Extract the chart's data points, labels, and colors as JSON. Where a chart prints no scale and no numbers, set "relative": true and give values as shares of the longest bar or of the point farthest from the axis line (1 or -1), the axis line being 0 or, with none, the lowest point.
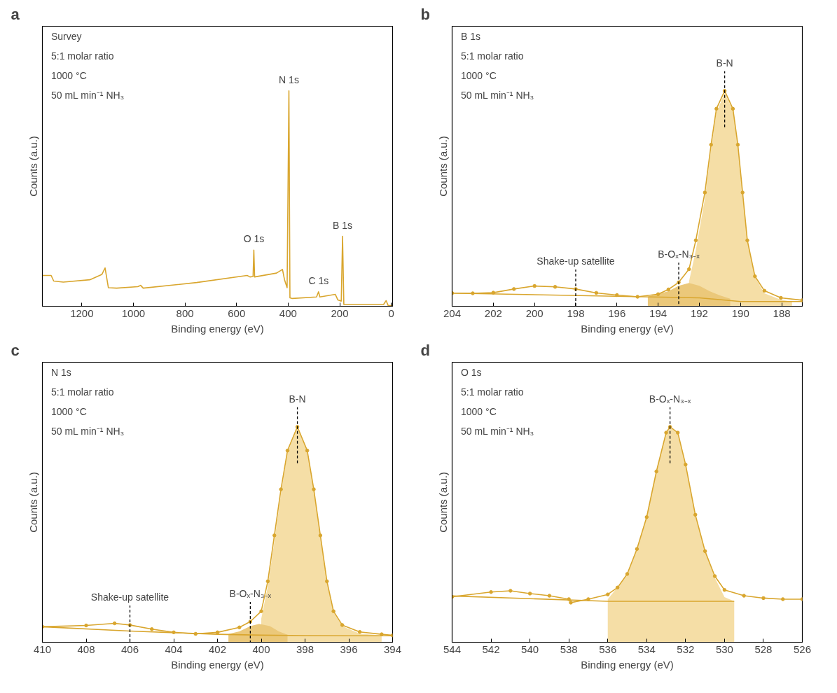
{
  "chart_data": [
    {
      "type": "line",
      "title": "a",
      "xlabel": "Binding energy (eV)",
      "ylabel": "Counts (a.u.)",
      "relative": true,
      "xlim": [
        1353,
        -5
      ],
      "xticks": [
        1200,
        1000,
        800,
        600,
        400,
        200,
        0
      ],
      "series": [
        {
          "color": "#d9a62e",
          "x": [
            1353,
            1319,
            1309,
            1272,
            1169,
            1122,
            1110,
            1097,
            1065,
            983,
            972,
            962,
            755,
            559,
            548,
            536,
            533,
            530,
            445,
            422,
            414,
            404,
            397,
            393,
            383,
            290,
            282,
            277,
            217,
            207,
            194,
            189,
            184,
            30,
            20,
            12,
            -4
          ],
          "values": [
            0.143,
            0.143,
            0.117,
            0.112,
            0.123,
            0.148,
            0.178,
            0.086,
            0.084,
            0.091,
            0.097,
            0.084,
            0.11,
            0.143,
            0.136,
            0.138,
            0.261,
            0.136,
            0.154,
            0.171,
            0.123,
            0.086,
            1.0,
            0.039,
            0.036,
            0.043,
            0.067,
            0.043,
            0.055,
            0.029,
            0.024,
            0.325,
            0.008,
            0.008,
            0.026,
            0.003,
            0.003
          ]
        }
      ],
      "annotations": [
        "Survey",
        "5:1 molar ratio",
        "1000 °C",
        "50 mL min⁻¹ NH₃",
        {
          "text": "N 1s",
          "x": 397,
          "y": 1.0
        },
        {
          "text": "O 1s",
          "x": 533,
          "y": 0.261
        },
        {
          "text": "C 1s",
          "x": 282,
          "y": 0.067
        },
        {
          "text": "B 1s",
          "x": 189,
          "y": 0.325
        }
      ]
    },
    {
      "type": "line",
      "title": "b",
      "xlabel": "Binding energy (eV)",
      "ylabel": "Counts (a.u.)",
      "relative": true,
      "xlim": [
        204,
        187
      ],
      "xticks": [
        204,
        202,
        200,
        198,
        196,
        194,
        192,
        190,
        188
      ],
      "marker": "circle",
      "series": [
        {
          "type": "area",
          "marker": "none",
          "color": "#f5dea6",
          "x": [
            192.5,
            192.17,
            191.73,
            191.43,
            191.17,
            190.77,
            190.37,
            190.13,
            189.9,
            189.67,
            189.3,
            188.84,
            188.04,
            187.5
          ],
          "values": [
            0.115,
            0.26,
            0.5,
            0.73,
            0.9,
            0.99,
            0.91,
            0.745,
            0.525,
            0.303,
            0.135,
            0.06,
            0.03,
            0.022
          ]
        },
        {
          "type": "area",
          "marker": "none",
          "color": "#ebc87a",
          "x": [
            194.5,
            193.5,
            193,
            192.5,
            192,
            191.5,
            191,
            190.5
          ],
          "values": [
            0.045,
            0.07,
            0.095,
            0.108,
            0.095,
            0.07,
            0.05,
            0.035
          ]
        },
        {
          "type": "line",
          "marker": "none",
          "color": "#d9a62e",
          "x": [
            204,
            192,
            190,
            187
          ],
          "values": [
            0.061,
            0.039,
            0.022,
            0.022
          ]
        },
        {
          "color": "#d9a62e",
          "x": [
            204,
            203,
            202,
            201,
            200,
            199,
            198,
            197,
            196,
            195,
            194,
            193.5,
            193,
            192.5,
            192.17,
            191.73,
            191.43,
            191.17,
            190.77,
            190.37,
            190.13,
            189.9,
            189.67,
            189.3,
            188.84,
            188.04,
            187
          ],
          "values": [
            0.061,
            0.06,
            0.063,
            0.08,
            0.094,
            0.09,
            0.08,
            0.062,
            0.052,
            0.044,
            0.056,
            0.078,
            0.111,
            0.172,
            0.306,
            0.528,
            0.75,
            0.917,
            1.0,
            0.917,
            0.75,
            0.528,
            0.306,
            0.139,
            0.072,
            0.039,
            0.028
          ]
        }
      ],
      "annotations": [
        "B 1s",
        "5:1 molar ratio",
        "1000 °C",
        "50 mL min⁻¹ NH₃",
        {
          "text": "B-N",
          "x": 190.77,
          "y": 1.0
        },
        {
          "text": "B-Oₓ-N₃₋ₓ",
          "x": 193,
          "y": 0.111
        },
        {
          "text": "Shake-up satellite",
          "x": 198,
          "y": 0.08
        }
      ]
    },
    {
      "type": "line",
      "title": "c",
      "xlabel": "Binding energy (eV)",
      "ylabel": "Counts (a.u.)",
      "relative": true,
      "xlim": [
        410,
        394
      ],
      "xticks": [
        410,
        408,
        406,
        404,
        402,
        400,
        398,
        396,
        394
      ],
      "marker": "circle",
      "series": [
        {
          "type": "area",
          "marker": "none",
          "color": "#f5dea6",
          "x": [
            400,
            399.7,
            399.4,
            399.1,
            398.8,
            398.35,
            397.9,
            397.6,
            397.3,
            397,
            396.7,
            396.3,
            395.5,
            394.5
          ],
          "values": [
            0.11,
            0.26,
            0.47,
            0.69,
            0.88,
            0.995,
            0.885,
            0.705,
            0.49,
            0.278,
            0.14,
            0.075,
            0.04,
            0.032
          ]
        },
        {
          "type": "area",
          "marker": "none",
          "color": "#ebc87a",
          "x": [
            401.5,
            401,
            400.5,
            400.1,
            399.6,
            399.2,
            398.8
          ],
          "values": [
            0.038,
            0.05,
            0.075,
            0.085,
            0.075,
            0.05,
            0.035
          ]
        },
        {
          "type": "line",
          "marker": "none",
          "color": "#d9a62e",
          "x": [
            410,
            406,
            402,
            400,
            398,
            396,
            394
          ],
          "values": [
            0.072,
            0.052,
            0.037,
            0.033,
            0.031,
            0.03,
            0.03
          ]
        },
        {
          "color": "#d9a62e",
          "x": [
            410,
            408,
            406.7,
            406,
            405,
            404,
            403,
            402,
            401,
            400.5,
            400,
            399.7,
            399.4,
            399.1,
            398.8,
            398.35,
            397.9,
            397.6,
            397.3,
            397,
            396.7,
            396.3,
            395.5,
            394.5,
            394
          ],
          "values": [
            0.072,
            0.078,
            0.088,
            0.08,
            0.061,
            0.046,
            0.039,
            0.046,
            0.069,
            0.096,
            0.144,
            0.283,
            0.496,
            0.71,
            0.89,
            1.0,
            0.89,
            0.71,
            0.496,
            0.283,
            0.144,
            0.08,
            0.048,
            0.037,
            0.032
          ]
        }
      ],
      "annotations": [
        "N 1s",
        "5:1 molar ratio",
        "1000 °C",
        "50 mL min⁻¹ NH₃",
        {
          "text": "B-N",
          "x": 398.35,
          "y": 1.0
        },
        {
          "text": "B-Oₓ-N₃₋ₓ",
          "x": 400.5,
          "y": 0.096
        },
        {
          "text": "Shake-up satellite",
          "x": 406,
          "y": 0.08
        }
      ]
    },
    {
      "type": "line",
      "title": "d",
      "xlabel": "Binding energy (eV)",
      "ylabel": "Counts (a.u.)",
      "relative": true,
      "xlim": [
        544,
        526
      ],
      "xticks": [
        544,
        542,
        540,
        538,
        536,
        534,
        532,
        530,
        528,
        526
      ],
      "marker": "circle",
      "series": [
        {
          "type": "area",
          "marker": "none",
          "color": "#f5dea6",
          "x": [
            536,
            535,
            534.5,
            534,
            533.5,
            533,
            532.8,
            532.4,
            532,
            531.5,
            531,
            530.5,
            530,
            529.5
          ],
          "values": [
            0.2,
            0.31,
            0.43,
            0.575,
            0.79,
            0.97,
            0.995,
            0.97,
            0.82,
            0.59,
            0.42,
            0.3,
            0.21,
            0.19
          ]
        },
        {
          "type": "line",
          "marker": "none",
          "color": "#d9a62e",
          "x": [
            544,
            536,
            529.5
          ],
          "values": [
            0.215,
            0.19,
            0.19
          ]
        },
        {
          "color": "#d9a62e",
          "x": [
            544,
            542,
            541,
            540,
            539,
            538,
            537.9,
            537,
            536,
            535.5,
            535,
            534.5,
            534,
            533.5,
            533,
            532.8,
            532.4,
            532,
            531.5,
            531,
            530.5,
            530,
            529,
            528,
            527,
            526
          ],
          "values": [
            0.211,
            0.233,
            0.239,
            0.226,
            0.216,
            0.2,
            0.184,
            0.2,
            0.222,
            0.254,
            0.317,
            0.433,
            0.581,
            0.793,
            0.973,
            1.0,
            0.973,
            0.825,
            0.592,
            0.423,
            0.307,
            0.243,
            0.216,
            0.205,
            0.2,
            0.2
          ]
        }
      ],
      "annotations": [
        "O 1s",
        "5:1 molar ratio",
        "1000 °C",
        "50 mL min⁻¹ NH₃",
        {
          "text": "B-Oₓ-N₃₋ₓ",
          "x": 532.8,
          "y": 1.0
        }
      ]
    }
  ]
}
